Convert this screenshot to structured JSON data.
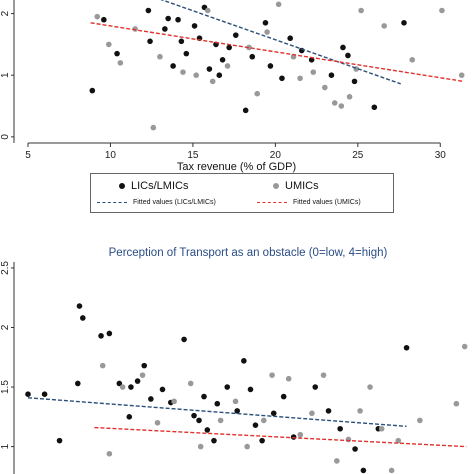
{
  "chart_data": [
    {
      "type": "scatter",
      "title": "",
      "xlabel": "Tax revenue (% of GDP)",
      "ylabel": "",
      "xlim": [
        5,
        31.5
      ],
      "xticks": [
        5,
        10,
        15,
        20,
        25,
        30
      ],
      "yticks": [
        0,
        1,
        2
      ],
      "ylim": [
        -0.1,
        2.35
      ],
      "series": [
        {
          "name": "LICs/LMICs",
          "color": "#111111",
          "points": [
            [
              8.9,
              0.75
            ],
            [
              9.6,
              1.9
            ],
            [
              11.7,
              2.3
            ],
            [
              12.3,
              2.05
            ],
            [
              13.5,
              1.92
            ],
            [
              13.3,
              1.75
            ],
            [
              14.1,
              1.9
            ],
            [
              14.3,
              1.55
            ],
            [
              14.6,
              1.35
            ],
            [
              15.1,
              1.8
            ],
            [
              15.4,
              1.6
            ],
            [
              15.7,
              2.1
            ],
            [
              16.4,
              1.5
            ],
            [
              16.8,
              1.25
            ],
            [
              16.0,
              1.1
            ],
            [
              17.2,
              1.45
            ],
            [
              17.6,
              1.65
            ],
            [
              18.2,
              0.43
            ],
            [
              18.6,
              1.3
            ],
            [
              19.4,
              1.85
            ],
            [
              19.7,
              1.15
            ],
            [
              20.4,
              0.95
            ],
            [
              21.6,
              1.4
            ],
            [
              22.2,
              1.25
            ],
            [
              23.4,
              1.0
            ],
            [
              24.1,
              1.45
            ],
            [
              24.4,
              1.32
            ],
            [
              26.0,
              0.48
            ],
            [
              27.8,
              1.85
            ],
            [
              10.4,
              1.35
            ],
            [
              12.4,
              1.55
            ],
            [
              13.8,
              1.15
            ],
            [
              16.6,
              1.0
            ],
            [
              20.9,
              1.6
            ],
            [
              24.8,
              0.9
            ]
          ]
        },
        {
          "name": "UMICs",
          "color": "#999999",
          "points": [
            [
              9.2,
              1.95
            ],
            [
              9.9,
              1.5
            ],
            [
              10.6,
              1.2
            ],
            [
              11.5,
              1.75
            ],
            [
              12.6,
              0.15
            ],
            [
              13.0,
              1.3
            ],
            [
              14.4,
              1.05
            ],
            [
              15.2,
              1.0
            ],
            [
              16.2,
              0.9
            ],
            [
              17.1,
              1.15
            ],
            [
              18.4,
              1.45
            ],
            [
              18.9,
              0.7
            ],
            [
              19.5,
              1.7
            ],
            [
              20.2,
              2.15
            ],
            [
              21.1,
              1.3
            ],
            [
              22.3,
              1.05
            ],
            [
              23.0,
              0.8
            ],
            [
              23.6,
              0.55
            ],
            [
              24.0,
              0.5
            ],
            [
              24.9,
              1.1
            ],
            [
              25.2,
              2.05
            ],
            [
              26.6,
              1.8
            ],
            [
              28.3,
              1.25
            ],
            [
              30.1,
              2.05
            ],
            [
              31.3,
              1.0
            ],
            [
              24.5,
              0.65
            ],
            [
              15.9,
              2.05
            ],
            [
              21.5,
              0.95
            ]
          ]
        }
      ],
      "fitted": [
        {
          "name": "Fitted values (LICs/LMICs)",
          "color": "#2b4f7a",
          "x": [
            12.3,
            27.6
          ],
          "y": [
            2.3,
            0.86
          ]
        },
        {
          "name": "Fitted values (UMICs)",
          "color": "#e0322e",
          "x": [
            8.8,
            31.4
          ],
          "y": [
            1.85,
            0.9
          ]
        }
      ]
    },
    {
      "type": "scatter",
      "title": "Perception of Transport as an obstacle (0=low, 4=high)",
      "xlabel": "",
      "ylabel": "",
      "xlim": [
        5,
        31.5
      ],
      "xticks": [],
      "yticks": [
        1,
        1.5,
        2,
        2.5
      ],
      "yticklabels": [
        "1",
        "1.5",
        "2",
        "2.5"
      ],
      "ylim": [
        0.77,
        2.55
      ],
      "series": [
        {
          "name": "LICs/LMICs",
          "color": "#111111",
          "points": [
            [
              5.0,
              1.44
            ],
            [
              6.0,
              1.44
            ],
            [
              8.1,
              2.18
            ],
            [
              8.3,
              2.08
            ],
            [
              8.0,
              1.53
            ],
            [
              9.4,
              1.93
            ],
            [
              9.9,
              1.95
            ],
            [
              10.5,
              1.53
            ],
            [
              11.2,
              1.5
            ],
            [
              11.6,
              1.55
            ],
            [
              12.0,
              1.68
            ],
            [
              12.4,
              1.4
            ],
            [
              13.1,
              1.48
            ],
            [
              13.6,
              1.37
            ],
            [
              14.4,
              1.9
            ],
            [
              15.0,
              1.26
            ],
            [
              15.3,
              1.22
            ],
            [
              15.8,
              1.14
            ],
            [
              16.4,
              1.36
            ],
            [
              17.0,
              1.5
            ],
            [
              17.6,
              1.3
            ],
            [
              18.0,
              1.72
            ],
            [
              18.7,
              1.18
            ],
            [
              19.1,
              1.05
            ],
            [
              19.8,
              1.28
            ],
            [
              20.4,
              1.42
            ],
            [
              21.0,
              1.08
            ],
            [
              22.3,
              1.5
            ],
            [
              23.1,
              1.3
            ],
            [
              23.8,
              1.15
            ],
            [
              24.7,
              0.98
            ],
            [
              25.2,
              0.8
            ],
            [
              26.1,
              1.15
            ],
            [
              27.8,
              1.83
            ],
            [
              6.9,
              1.05
            ],
            [
              11.1,
              1.25
            ],
            [
              15.6,
              1.42
            ],
            [
              16.2,
              1.05
            ],
            [
              18.4,
              1.48
            ]
          ]
        },
        {
          "name": "UMICs",
          "color": "#999999",
          "points": [
            [
              9.5,
              1.68
            ],
            [
              10.7,
              1.5
            ],
            [
              11.9,
              1.6
            ],
            [
              13.8,
              1.38
            ],
            [
              14.8,
              1.53
            ],
            [
              15.4,
              1.0
            ],
            [
              16.6,
              1.22
            ],
            [
              17.5,
              1.38
            ],
            [
              18.2,
              1.0
            ],
            [
              19.2,
              1.22
            ],
            [
              19.7,
              1.6
            ],
            [
              20.7,
              1.57
            ],
            [
              21.4,
              1.1
            ],
            [
              22.1,
              1.28
            ],
            [
              22.8,
              1.6
            ],
            [
              24.3,
              1.06
            ],
            [
              25.0,
              1.3
            ],
            [
              25.6,
              1.5
            ],
            [
              26.3,
              1.15
            ],
            [
              27.3,
              1.05
            ],
            [
              28.6,
              1.22
            ],
            [
              30.8,
              1.36
            ],
            [
              31.3,
              1.84
            ],
            [
              9.9,
              0.94
            ],
            [
              23.6,
              0.88
            ],
            [
              26.9,
              0.8
            ],
            [
              12.8,
              1.2
            ]
          ]
        }
      ],
      "fitted": [
        {
          "name": "Fitted values (LICs/LMICs)",
          "color": "#2b4f7a",
          "x": [
            5.0,
            27.8
          ],
          "y": [
            1.41,
            1.17
          ]
        },
        {
          "name": "Fitted values (UMICs)",
          "color": "#e0322e",
          "x": [
            9.0,
            31.4
          ],
          "y": [
            1.16,
            1.0
          ]
        }
      ]
    }
  ],
  "legend": {
    "items": [
      {
        "label": "LICs/LMICs",
        "kind": "dot",
        "color": "#111111"
      },
      {
        "label": "UMICs",
        "kind": "dot",
        "color": "#999999"
      },
      {
        "label": "Fitted values (LICs/LMICs)",
        "kind": "line",
        "color": "#2b4f7a"
      },
      {
        "label": "Fitted values (UMICs)",
        "kind": "line",
        "color": "#e0322e"
      }
    ]
  }
}
